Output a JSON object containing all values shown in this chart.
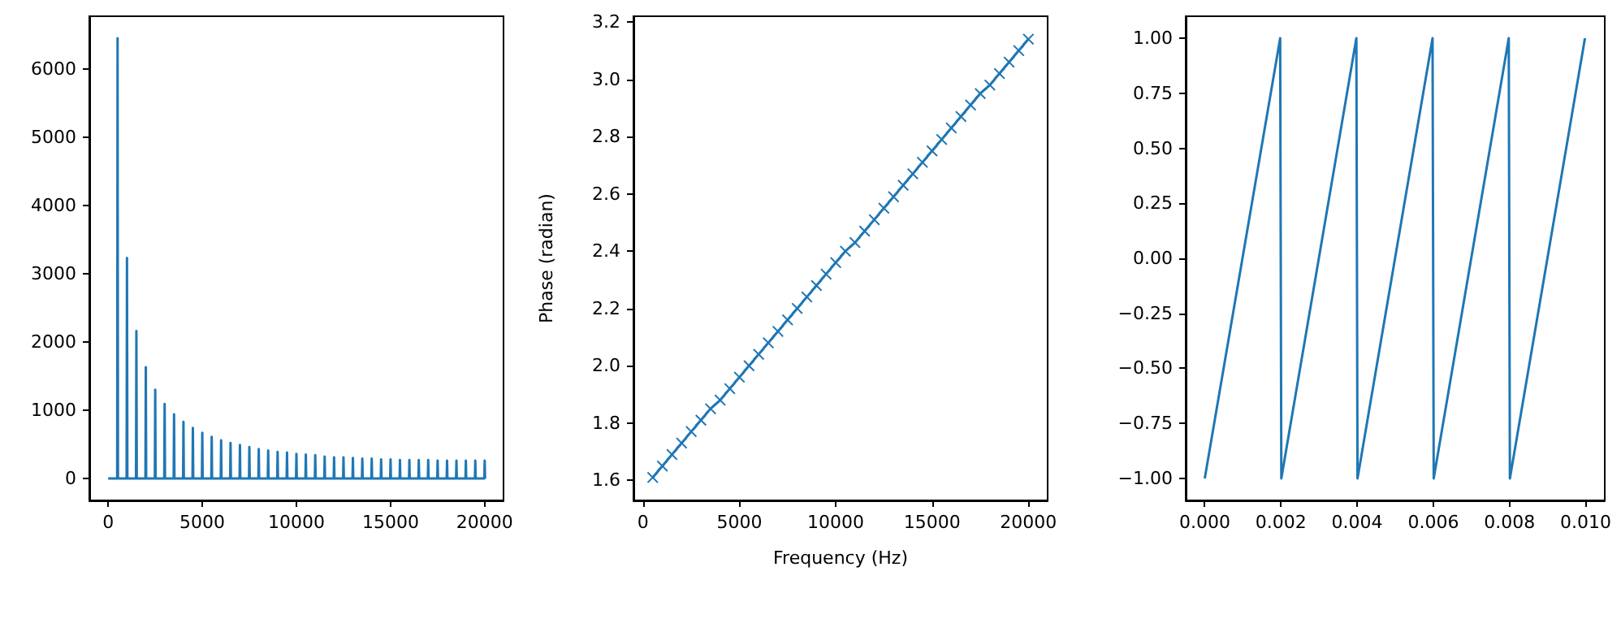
{
  "chart_data": [
    {
      "type": "line",
      "xlim": [
        -1000,
        21000
      ],
      "ylim": [
        -322,
        6770
      ],
      "xticks": [
        0,
        5000,
        10000,
        15000,
        20000
      ],
      "yticks": [
        0,
        1000,
        2000,
        3000,
        4000,
        5000,
        6000
      ],
      "grid": false,
      "marker": "none",
      "series": [
        {
          "color": "#1f77b4",
          "x": [
            0,
            480,
            500,
            520,
            980,
            1000,
            1020,
            1480,
            1500,
            1520,
            1980,
            2000,
            2020,
            2480,
            2500,
            2520,
            2980,
            3000,
            3020,
            3480,
            3500,
            3520,
            3980,
            4000,
            4020,
            4480,
            4500,
            4520,
            4980,
            5000,
            5020,
            5480,
            5500,
            5520,
            5980,
            6000,
            6020,
            6480,
            6500,
            6520,
            6980,
            7000,
            7020,
            7480,
            7500,
            7520,
            7980,
            8000,
            8020,
            8480,
            8500,
            8520,
            8980,
            9000,
            9020,
            9480,
            9500,
            9520,
            9980,
            10000,
            10020,
            10480,
            10500,
            10520,
            10980,
            11000,
            11020,
            11480,
            11500,
            11520,
            11980,
            12000,
            12020,
            12480,
            12500,
            12520,
            12980,
            13000,
            13020,
            13480,
            13500,
            13520,
            13980,
            14000,
            14020,
            14480,
            14500,
            14520,
            14980,
            15000,
            15020,
            15480,
            15500,
            15520,
            15980,
            16000,
            16020,
            16480,
            16500,
            16520,
            16980,
            17000,
            17020,
            17480,
            17500,
            17520,
            17980,
            18000,
            18020,
            18480,
            18500,
            18520,
            18980,
            19000,
            19020,
            19480,
            19500,
            19520,
            19980,
            20000,
            20020
          ],
          "values": [
            0,
            0,
            6450,
            0,
            0,
            3230,
            0,
            0,
            2160,
            0,
            0,
            1630,
            0,
            0,
            1300,
            0,
            0,
            1090,
            0,
            0,
            940,
            0,
            0,
            830,
            0,
            0,
            740,
            0,
            0,
            670,
            0,
            0,
            610,
            0,
            0,
            560,
            0,
            0,
            520,
            0,
            0,
            490,
            0,
            0,
            460,
            0,
            0,
            430,
            0,
            0,
            410,
            0,
            0,
            390,
            0,
            0,
            380,
            0,
            0,
            360,
            0,
            0,
            350,
            0,
            0,
            340,
            0,
            0,
            320,
            0,
            0,
            310,
            0,
            0,
            310,
            0,
            0,
            300,
            0,
            0,
            290,
            0,
            0,
            290,
            0,
            0,
            280,
            0,
            0,
            280,
            0,
            0,
            270,
            0,
            0,
            270,
            0,
            0,
            270,
            0,
            0,
            270,
            0,
            0,
            260,
            0,
            0,
            260,
            0,
            0,
            260,
            0,
            0,
            260,
            0,
            0,
            260,
            0,
            0,
            260,
            0
          ]
        }
      ]
    },
    {
      "type": "line",
      "xlabel": "Frequency (Hz)",
      "ylabel": "Phase (radian)",
      "xlim": [
        -500,
        21000
      ],
      "ylim": [
        1.53,
        3.22
      ],
      "xticks": [
        0,
        5000,
        10000,
        15000,
        20000
      ],
      "yticks": [
        {
          "value": 1.6,
          "label": "1.6"
        },
        {
          "value": 1.8,
          "label": "1.8"
        },
        {
          "value": 2.0,
          "label": "2.0"
        },
        {
          "value": 2.2,
          "label": "2.2"
        },
        {
          "value": 2.4,
          "label": "2.4"
        },
        {
          "value": 2.6,
          "label": "2.6"
        },
        {
          "value": 2.8,
          "label": "2.8"
        },
        {
          "value": 3.0,
          "label": "3.0"
        },
        {
          "value": 3.2,
          "label": "3.2"
        }
      ],
      "grid": false,
      "marker": "cross",
      "series": [
        {
          "color": "#1f77b4",
          "x": [
            500,
            1000,
            1500,
            2000,
            2500,
            3000,
            3500,
            4000,
            4500,
            5000,
            5500,
            6000,
            6500,
            7000,
            7500,
            8000,
            8500,
            9000,
            9500,
            10000,
            10500,
            11000,
            11500,
            12000,
            12500,
            13000,
            13500,
            14000,
            14500,
            15000,
            15500,
            16000,
            16500,
            17000,
            17500,
            18000,
            18500,
            19000,
            19500,
            20000
          ],
          "values": [
            1.61,
            1.65,
            1.69,
            1.73,
            1.77,
            1.81,
            1.85,
            1.88,
            1.92,
            1.96,
            2.0,
            2.04,
            2.08,
            2.12,
            2.16,
            2.2,
            2.24,
            2.28,
            2.32,
            2.36,
            2.4,
            2.43,
            2.47,
            2.51,
            2.55,
            2.59,
            2.63,
            2.67,
            2.71,
            2.75,
            2.79,
            2.83,
            2.87,
            2.91,
            2.95,
            2.98,
            3.02,
            3.06,
            3.1,
            3.14
          ]
        }
      ]
    },
    {
      "type": "line",
      "xlim": [
        -0.0005,
        0.0105
      ],
      "ylim": [
        -1.1,
        1.1
      ],
      "xticks": [
        {
          "value": 0,
          "label": "0.000"
        },
        {
          "value": 0.002,
          "label": "0.002"
        },
        {
          "value": 0.004,
          "label": "0.004"
        },
        {
          "value": 0.006,
          "label": "0.006"
        },
        {
          "value": 0.008,
          "label": "0.008"
        },
        {
          "value": 0.01,
          "label": "0.010"
        }
      ],
      "yticks": [
        {
          "value": -1,
          "label": "−1.00"
        },
        {
          "value": -0.75,
          "label": "−0.75"
        },
        {
          "value": -0.5,
          "label": "−0.50"
        },
        {
          "value": -0.25,
          "label": "−0.25"
        },
        {
          "value": 0,
          "label": "0.00"
        },
        {
          "value": 0.25,
          "label": "0.25"
        },
        {
          "value": 0.5,
          "label": "0.50"
        },
        {
          "value": 0.75,
          "label": "0.75"
        },
        {
          "value": 1,
          "label": "1.00"
        }
      ],
      "grid": false,
      "marker": "none",
      "series": [
        {
          "color": "#1f77b4",
          "x": [
            0,
            0.00198,
            0.00201,
            0.00398,
            0.00401,
            0.00598,
            0.00601,
            0.00798,
            0.00801,
            0.00998
          ],
          "values": [
            -1,
            1,
            -1,
            1,
            -1,
            1,
            -1,
            1,
            -1,
            1
          ]
        }
      ]
    }
  ]
}
